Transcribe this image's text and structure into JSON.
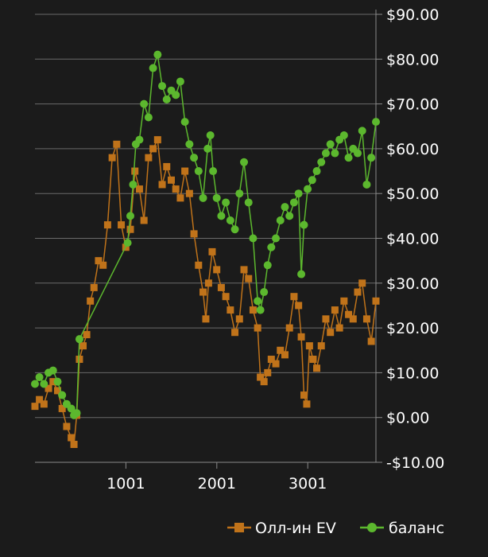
{
  "chart_data": {
    "type": "line",
    "title": "",
    "xlabel": "",
    "ylabel": "",
    "y_axis_side": "right",
    "xlim": [
      1,
      3751
    ],
    "ylim": [
      -10,
      90
    ],
    "x_ticks": [
      1001,
      2001,
      3001
    ],
    "x_tick_labels": [
      "1001",
      "2001",
      "3001"
    ],
    "y_ticks": [
      -10,
      0,
      10,
      20,
      30,
      40,
      50,
      60,
      70,
      80,
      90
    ],
    "y_tick_labels": [
      "-$10.00",
      "$0.00",
      "$10.00",
      "$20.00",
      "$30.00",
      "$40.00",
      "$50.00",
      "$60.00",
      "$70.00",
      "$80.00",
      "$90.00"
    ],
    "grid": true,
    "legend_position": "bottom-right",
    "series": [
      {
        "name": "Олл-ин EV",
        "color": "#c0731a",
        "marker": "square",
        "points": [
          [
            1,
            2.5
          ],
          [
            50,
            4.0
          ],
          [
            100,
            3.0
          ],
          [
            150,
            6.5
          ],
          [
            200,
            8.0
          ],
          [
            250,
            6.0
          ],
          [
            300,
            2.0
          ],
          [
            350,
            -2.0
          ],
          [
            400,
            -4.5
          ],
          [
            430,
            -6.0
          ],
          [
            460,
            0.5
          ],
          [
            490,
            13.0
          ],
          [
            530,
            16.0
          ],
          [
            570,
            18.5
          ],
          [
            610,
            26.0
          ],
          [
            650,
            29.0
          ],
          [
            700,
            35.0
          ],
          [
            750,
            34.0
          ],
          [
            800,
            43.0
          ],
          [
            850,
            58.0
          ],
          [
            900,
            61.0
          ],
          [
            950,
            43.0
          ],
          [
            1000,
            38.0
          ],
          [
            1050,
            42.0
          ],
          [
            1100,
            55.0
          ],
          [
            1150,
            51.0
          ],
          [
            1200,
            44.0
          ],
          [
            1250,
            58.0
          ],
          [
            1300,
            60.0
          ],
          [
            1350,
            62.0
          ],
          [
            1400,
            52.0
          ],
          [
            1450,
            56.0
          ],
          [
            1500,
            53.0
          ],
          [
            1550,
            51.0
          ],
          [
            1600,
            49.0
          ],
          [
            1650,
            55.0
          ],
          [
            1700,
            50.0
          ],
          [
            1750,
            41.0
          ],
          [
            1800,
            34.0
          ],
          [
            1850,
            28.0
          ],
          [
            1880,
            22.0
          ],
          [
            1910,
            30.0
          ],
          [
            1950,
            37.0
          ],
          [
            2000,
            33.0
          ],
          [
            2050,
            29.0
          ],
          [
            2100,
            27.0
          ],
          [
            2150,
            24.0
          ],
          [
            2200,
            19.0
          ],
          [
            2250,
            22.0
          ],
          [
            2300,
            33.0
          ],
          [
            2350,
            31.0
          ],
          [
            2400,
            24.0
          ],
          [
            2450,
            20.0
          ],
          [
            2480,
            9.0
          ],
          [
            2520,
            8.0
          ],
          [
            2560,
            10.0
          ],
          [
            2600,
            13.0
          ],
          [
            2650,
            12.0
          ],
          [
            2700,
            15.0
          ],
          [
            2750,
            14.0
          ],
          [
            2800,
            20.0
          ],
          [
            2850,
            27.0
          ],
          [
            2900,
            25.0
          ],
          [
            2930,
            18.0
          ],
          [
            2960,
            5.0
          ],
          [
            2990,
            3.0
          ],
          [
            3020,
            16.0
          ],
          [
            3060,
            13.0
          ],
          [
            3100,
            11.0
          ],
          [
            3150,
            16.0
          ],
          [
            3200,
            22.0
          ],
          [
            3250,
            19.0
          ],
          [
            3300,
            24.0
          ],
          [
            3350,
            20.0
          ],
          [
            3400,
            26.0
          ],
          [
            3450,
            23.0
          ],
          [
            3500,
            22.0
          ],
          [
            3550,
            28.0
          ],
          [
            3600,
            30.0
          ],
          [
            3650,
            22.0
          ],
          [
            3700,
            17.0
          ],
          [
            3751,
            26.0
          ]
        ]
      },
      {
        "name": "баланс",
        "color": "#5cb82e",
        "marker": "circle",
        "points": [
          [
            1,
            7.5
          ],
          [
            50,
            9.0
          ],
          [
            100,
            7.5
          ],
          [
            150,
            10.0
          ],
          [
            200,
            10.5
          ],
          [
            250,
            8.0
          ],
          [
            300,
            5.0
          ],
          [
            350,
            3.0
          ],
          [
            400,
            2.0
          ],
          [
            430,
            0.5
          ],
          [
            460,
            1.0
          ],
          [
            490,
            17.5
          ],
          [
            1020,
            39.0
          ],
          [
            1050,
            45.0
          ],
          [
            1080,
            52.0
          ],
          [
            1110,
            61.0
          ],
          [
            1150,
            62.0
          ],
          [
            1200,
            70.0
          ],
          [
            1250,
            67.0
          ],
          [
            1300,
            78.0
          ],
          [
            1350,
            81.0
          ],
          [
            1400,
            74.0
          ],
          [
            1450,
            71.0
          ],
          [
            1500,
            73.0
          ],
          [
            1550,
            72.0
          ],
          [
            1600,
            75.0
          ],
          [
            1650,
            66.0
          ],
          [
            1700,
            61.0
          ],
          [
            1750,
            58.0
          ],
          [
            1800,
            55.0
          ],
          [
            1850,
            49.0
          ],
          [
            1900,
            60.0
          ],
          [
            1930,
            63.0
          ],
          [
            1960,
            55.0
          ],
          [
            2000,
            49.0
          ],
          [
            2050,
            45.0
          ],
          [
            2100,
            48.0
          ],
          [
            2150,
            44.0
          ],
          [
            2200,
            42.0
          ],
          [
            2250,
            50.0
          ],
          [
            2300,
            57.0
          ],
          [
            2350,
            48.0
          ],
          [
            2400,
            40.0
          ],
          [
            2450,
            26.0
          ],
          [
            2480,
            24.0
          ],
          [
            2520,
            28.0
          ],
          [
            2560,
            34.0
          ],
          [
            2600,
            38.0
          ],
          [
            2650,
            40.0
          ],
          [
            2700,
            44.0
          ],
          [
            2750,
            47.0
          ],
          [
            2800,
            45.0
          ],
          [
            2850,
            48.0
          ],
          [
            2900,
            50.0
          ],
          [
            2930,
            32.0
          ],
          [
            2960,
            43.0
          ],
          [
            3000,
            51.0
          ],
          [
            3050,
            53.0
          ],
          [
            3100,
            55.0
          ],
          [
            3150,
            57.0
          ],
          [
            3200,
            59.0
          ],
          [
            3250,
            61.0
          ],
          [
            3300,
            59.0
          ],
          [
            3350,
            62.0
          ],
          [
            3400,
            63.0
          ],
          [
            3450,
            58.0
          ],
          [
            3500,
            60.0
          ],
          [
            3550,
            59.0
          ],
          [
            3600,
            64.0
          ],
          [
            3650,
            52.0
          ],
          [
            3700,
            58.0
          ],
          [
            3751,
            66.0
          ]
        ]
      }
    ]
  }
}
